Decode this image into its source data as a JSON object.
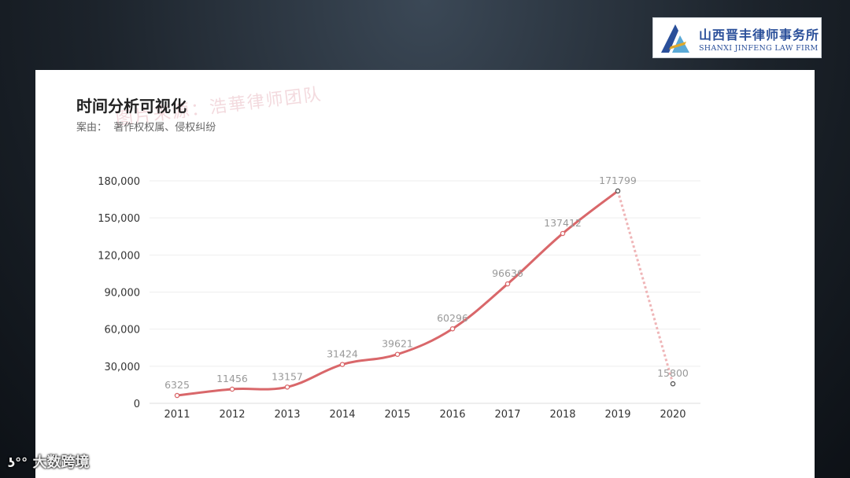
{
  "logo": {
    "name_cn": "山西晋丰律师事务所",
    "name_en": "SHANXI JINFENG LAW FIRM"
  },
  "watermark": "图片来源：浩華律师团队",
  "footer": {
    "brand": "大数跨境"
  },
  "colors": {
    "line": "#d9676a",
    "background_card": "#ffffff",
    "grid": "#eeeeee"
  },
  "chart_data": {
    "type": "line",
    "title": "时间分析可视化",
    "subtitle": "案由：  著作权权属、侵权纠纷",
    "categories": [
      "2011",
      "2012",
      "2013",
      "2014",
      "2015",
      "2016",
      "2017",
      "2018",
      "2019",
      "2020"
    ],
    "values": [
      6325,
      11456,
      13157,
      31424,
      39621,
      60296,
      96636,
      137412,
      171799,
      15800
    ],
    "data_labels": [
      "6325",
      "11456",
      "13157",
      "31424",
      "39621",
      "60296",
      "96636",
      "137412",
      "171799",
      "15800"
    ],
    "y_ticks": [
      "0",
      "30,000",
      "60,000",
      "90,000",
      "120,000",
      "150,000",
      "180,000"
    ],
    "ylim": [
      0,
      180000
    ],
    "dashed_last_segment": true,
    "grid": true
  }
}
